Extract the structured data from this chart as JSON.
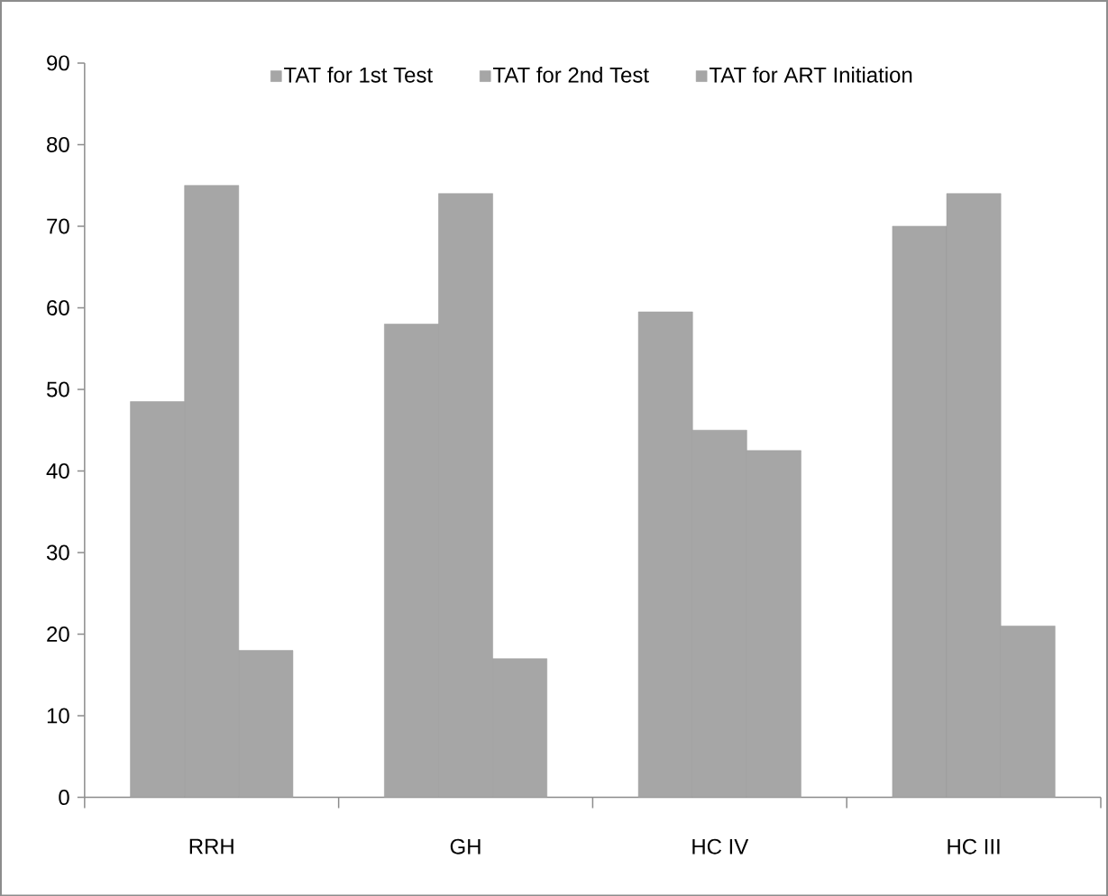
{
  "chart_data": {
    "type": "bar",
    "categories": [
      "RRH",
      "GH",
      "HC IV",
      "HC III"
    ],
    "series": [
      {
        "name": "TAT for 1st Test",
        "color": "#a6a6a6",
        "values": [
          48.5,
          58,
          59.5,
          70
        ]
      },
      {
        "name": "TAT for 2nd Test",
        "color": "#a6a6a6",
        "values": [
          75,
          74,
          45,
          74
        ]
      },
      {
        "name": "TAT for ART Initiation",
        "color": "#a6a6a6",
        "values": [
          18,
          17,
          42.5,
          21
        ]
      }
    ],
    "ylim": [
      0,
      90
    ],
    "yticks": [
      0,
      10,
      20,
      30,
      40,
      50,
      60,
      70,
      80,
      90
    ],
    "grid": false,
    "legend": "top"
  }
}
